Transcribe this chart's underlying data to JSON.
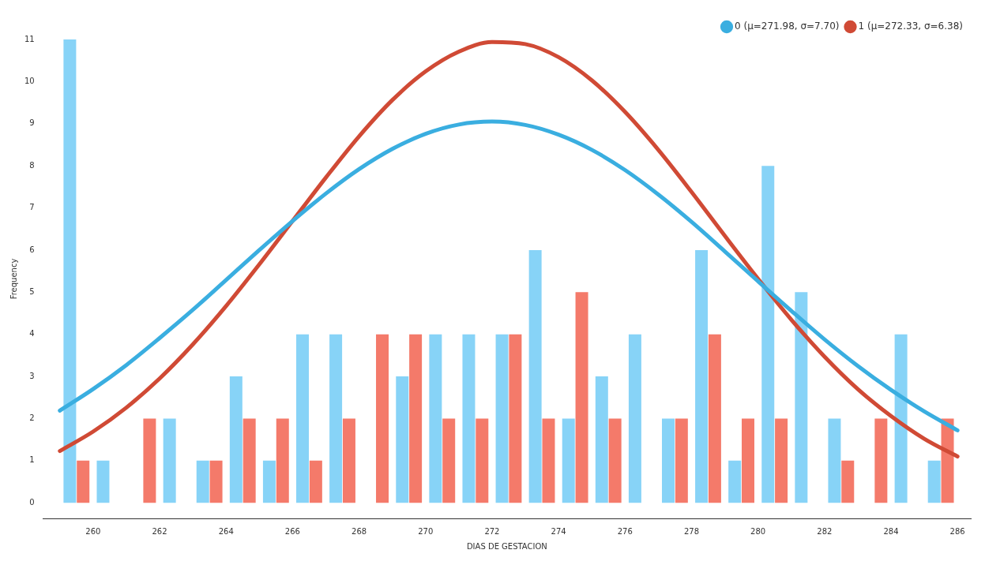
{
  "chart_data": {
    "type": "histogram",
    "xlabel": "DIAS DE GESTACION",
    "ylabel": "Frequency",
    "bins": [
      259,
      260,
      261,
      262,
      263,
      264,
      265,
      266,
      267,
      268,
      269,
      270,
      271,
      272,
      273,
      274,
      275,
      276,
      277,
      278,
      279,
      280,
      281,
      282,
      283,
      284,
      285,
      286
    ],
    "series": [
      {
        "color": "#87d3f7",
        "values": [
          11,
          1,
          0,
          2,
          1,
          3,
          1,
          4,
          4,
          0,
          3,
          4,
          4,
          4,
          6,
          2,
          3,
          4,
          2,
          6,
          1,
          8,
          5,
          2,
          0,
          4,
          1
        ]
      },
      {
        "color": "#f47a6a",
        "values": [
          1,
          0,
          2,
          0,
          1,
          2,
          2,
          1,
          2,
          4,
          4,
          2,
          2,
          4,
          2,
          5,
          2,
          0,
          2,
          4,
          2,
          2,
          0,
          1,
          2,
          0,
          2
        ]
      },
      {
        "type": "line",
        "name": "0 (μ=271.98, σ=7.70)",
        "color": "#3aaee0",
        "x": [
          259,
          260,
          261,
          262,
          263,
          264,
          265,
          266,
          267,
          268,
          269,
          270,
          271,
          272,
          273,
          274,
          275,
          276,
          277,
          278,
          279,
          280,
          281,
          282,
          283,
          284,
          285,
          286
        ],
        "values": [
          2.19,
          2.7,
          3.27,
          3.91,
          4.58,
          5.29,
          6.0,
          6.69,
          7.34,
          7.92,
          8.4,
          8.76,
          8.98,
          9.05,
          8.97,
          8.74,
          8.38,
          7.9,
          7.32,
          6.67,
          5.97,
          5.26,
          4.56,
          3.88,
          3.25,
          2.68,
          2.17,
          1.72
        ]
      },
      {
        "type": "line",
        "name": "1 (μ=272.33, σ=6.38)",
        "color": "#d04a35",
        "x": [
          259,
          260,
          261,
          262,
          263,
          264,
          265,
          266,
          267,
          268,
          269,
          270,
          271,
          272,
          273,
          274,
          275,
          276,
          277,
          278,
          279,
          280,
          281,
          282,
          283,
          284,
          285,
          286
        ],
        "values": [
          1.23,
          1.69,
          2.26,
          2.95,
          3.76,
          4.67,
          5.66,
          6.69,
          7.72,
          8.7,
          9.56,
          10.24,
          10.71,
          10.94,
          10.89,
          10.58,
          10.03,
          9.28,
          8.38,
          7.38,
          6.34,
          5.32,
          4.35,
          3.47,
          2.7,
          2.06,
          1.52,
          1.1
        ]
      }
    ],
    "xlim": [
      258.5,
      286.4
    ],
    "xticks": [
      260,
      262,
      264,
      266,
      268,
      270,
      272,
      274,
      276,
      278,
      280,
      282,
      284,
      286
    ],
    "ylim": [
      -0.37,
      11
    ],
    "yticks": [
      0,
      1,
      2,
      3,
      4,
      5,
      6,
      7,
      8,
      9,
      10,
      11
    ],
    "legend": "top right"
  }
}
